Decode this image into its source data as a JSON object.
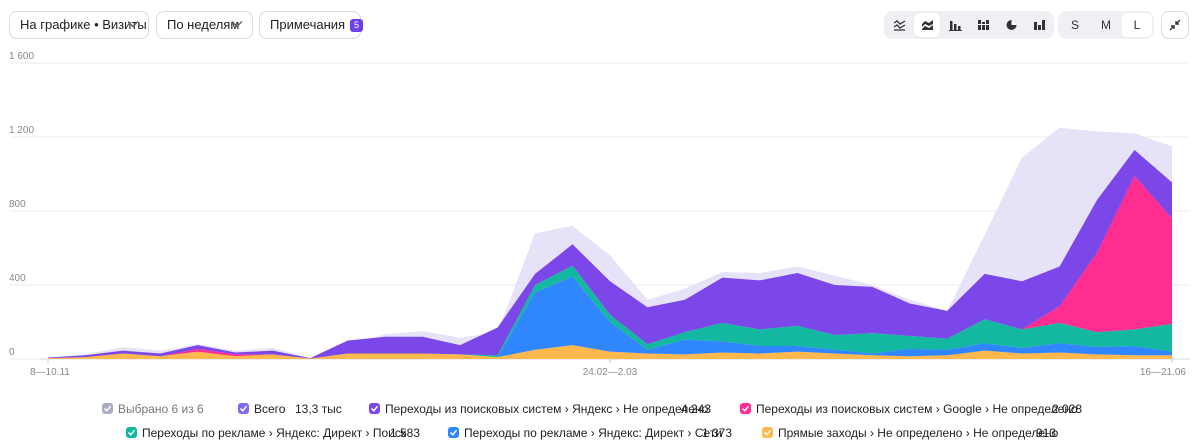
{
  "toolbar": {
    "graph_select": "На графике • Визиты",
    "period_select": "По неделям",
    "notes_label": "Примечания",
    "notes_count": "5",
    "chart_types": [
      "line-chart-icon",
      "stacked-area-icon",
      "bar-chart-icon",
      "stacked-bar-icon",
      "pie-chart-icon",
      "column-chart-icon"
    ],
    "sizes": [
      "S",
      "M",
      "L"
    ],
    "active_size": "L"
  },
  "chart_data": {
    "type": "area",
    "stacked": true,
    "x_labels": [
      "8—10.11",
      "24.02—2.03",
      "16—21.06"
    ],
    "ylim": [
      0,
      1600
    ],
    "yticks": [
      "0",
      "400",
      "800",
      "1 200",
      "1 600"
    ],
    "ytick_values": [
      0,
      400,
      800,
      1200,
      1600
    ],
    "grid": true,
    "total": [
      8,
      25,
      65,
      45,
      80,
      45,
      60,
      5,
      70,
      135,
      150,
      115,
      145,
      680,
      720,
      560,
      320,
      380,
      470,
      465,
      500,
      450,
      400,
      320,
      260,
      670,
      1090,
      1250,
      1230,
      1220,
      1150
    ],
    "series": [
      {
        "name": "Прямые заходы › Не определено › Не определено",
        "color": "#ffb84d",
        "values": [
          5,
          10,
          30,
          15,
          40,
          15,
          25,
          3,
          30,
          30,
          30,
          25,
          10,
          50,
          75,
          40,
          30,
          25,
          35,
          30,
          40,
          30,
          20,
          15,
          20,
          45,
          30,
          35,
          25,
          20,
          20
        ]
      },
      {
        "name": "Переходы по рекламе › Яндекс: Директ › Сети",
        "color": "#2f86ff",
        "values": [
          0,
          0,
          0,
          0,
          0,
          0,
          0,
          0,
          0,
          0,
          0,
          0,
          0,
          310,
          370,
          160,
          20,
          80,
          60,
          40,
          30,
          20,
          10,
          40,
          30,
          40,
          30,
          50,
          40,
          50,
          20
        ]
      },
      {
        "name": "Переходы по рекламе › Яндекс: Директ › Поиск",
        "color": "#14b8a0",
        "values": [
          0,
          0,
          0,
          0,
          0,
          0,
          0,
          0,
          0,
          0,
          0,
          0,
          10,
          40,
          60,
          40,
          30,
          40,
          100,
          90,
          110,
          80,
          110,
          70,
          60,
          130,
          100,
          110,
          80,
          90,
          150
        ]
      },
      {
        "name": "Переходы из поисковых систем › Google › Не определено",
        "color": "#ff2d8f",
        "values": [
          0,
          0,
          0,
          0,
          15,
          10,
          0,
          0,
          0,
          0,
          0,
          0,
          0,
          0,
          0,
          0,
          0,
          0,
          0,
          0,
          0,
          0,
          0,
          0,
          0,
          0,
          0,
          90,
          430,
          830,
          570
        ]
      },
      {
        "name": "Переходы из поисковых систем › Яндекс › Не определено",
        "color": "#7b47e8",
        "values": [
          3,
          10,
          15,
          15,
          20,
          10,
          20,
          2,
          70,
          90,
          90,
          50,
          150,
          60,
          115,
          180,
          200,
          175,
          245,
          265,
          285,
          270,
          250,
          175,
          150,
          245,
          260,
          215,
          285,
          140,
          195
        ]
      }
    ]
  },
  "legend": {
    "selected": "Выбрано 6 из 6",
    "items": [
      {
        "label": "Всего",
        "value": "13,3 тыс",
        "color": "#7b6cf0"
      },
      {
        "label": "Переходы из поисковых систем › Яндекс › Не определено",
        "value": "4 243",
        "color": "#7b47e8"
      },
      {
        "label": "Переходы из поисковых систем › Google › Не определено",
        "value": "2 028",
        "color": "#ff2d8f"
      },
      {
        "label": "Переходы по рекламе › Яндекс: Директ › Поиск",
        "value": "1 583",
        "color": "#14b8a0"
      },
      {
        "label": "Переходы по рекламе › Яндекс: Директ › Сети",
        "value": "1 373",
        "color": "#2f86ff"
      },
      {
        "label": "Прямые заходы › Не определено › Не определено",
        "value": "913",
        "color": "#ffb84d"
      }
    ]
  },
  "colors": {
    "total_fill": "#e6e2f7",
    "grid": "#e9ebef",
    "axis_text": "#888888",
    "selected_box": "#a8aec0"
  }
}
